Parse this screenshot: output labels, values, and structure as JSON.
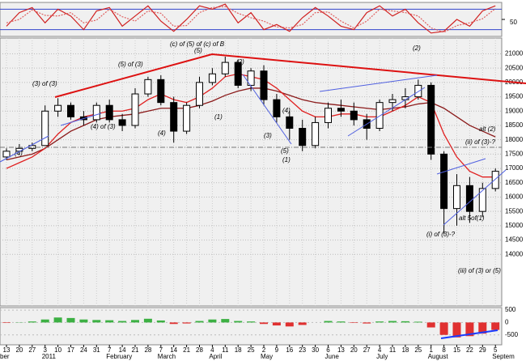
{
  "chart_data": [
    {
      "type": "candlestick",
      "categories": [
        "13",
        "20",
        "27",
        "3",
        "10",
        "17",
        "24",
        "31",
        "7",
        "14",
        "21",
        "28",
        "7",
        "14",
        "21",
        "28",
        "4",
        "11",
        "18",
        "25",
        "2",
        "9",
        "16",
        "23",
        "30",
        "6",
        "13",
        "20",
        "27",
        "4",
        "11",
        "18",
        "25",
        "1",
        "8",
        "15",
        "22",
        "29",
        "5"
      ],
      "months": [
        {
          "label": "ber",
          "at": 0
        },
        {
          "label": "2011",
          "at": 3
        },
        {
          "label": "February",
          "at": 8
        },
        {
          "label": "March",
          "at": 12
        },
        {
          "label": "April",
          "at": 16
        },
        {
          "label": "May",
          "at": 20
        },
        {
          "label": "June",
          "at": 25
        },
        {
          "label": "July",
          "at": 29
        },
        {
          "label": "August",
          "at": 33
        },
        {
          "label": "Septem",
          "at": 38
        }
      ],
      "open": [
        17400,
        17600,
        17700,
        17800,
        19000,
        19200,
        18800,
        18700,
        19200,
        18700,
        18500,
        19600,
        20100,
        19300,
        18300,
        19200,
        20000,
        20300,
        20700,
        19900,
        20400,
        19400,
        18800,
        18400,
        17800,
        18600,
        19100,
        19000,
        18700,
        18400,
        19300,
        19400,
        19500,
        19900,
        17500,
        15600,
        16400,
        15500,
        16300
      ],
      "high": [
        17700,
        17850,
        17900,
        19200,
        19450,
        19300,
        19000,
        19300,
        19400,
        18900,
        19800,
        20200,
        20250,
        19500,
        19300,
        20200,
        20500,
        20900,
        20800,
        20500,
        20600,
        19600,
        19000,
        18700,
        18800,
        19300,
        19400,
        19300,
        18900,
        19400,
        19600,
        19800,
        20100,
        20000,
        17600,
        16800,
        16700,
        16500,
        17000
      ],
      "low": [
        17300,
        17500,
        17600,
        17800,
        18800,
        18700,
        18500,
        18600,
        18600,
        18300,
        18400,
        19500,
        19200,
        17900,
        18200,
        19100,
        19900,
        20200,
        19800,
        19700,
        19200,
        18600,
        18000,
        17600,
        17700,
        18400,
        18800,
        18500,
        18000,
        18300,
        19000,
        19100,
        19400,
        17300,
        14700,
        15000,
        15100,
        15300,
        16200
      ],
      "close": [
        17600,
        17700,
        17800,
        19000,
        19200,
        18800,
        18700,
        19200,
        18700,
        18500,
        19600,
        20100,
        19300,
        18300,
        19200,
        20000,
        20300,
        20700,
        19900,
        20400,
        19400,
        18800,
        18400,
        17800,
        18600,
        19100,
        19000,
        18700,
        18400,
        19300,
        19400,
        19500,
        19900,
        17500,
        15600,
        16400,
        15500,
        16300,
        16900
      ],
      "overlays": [
        {
          "color": "#8b1a1a",
          "values": [
            17300,
            17400,
            17500,
            17700,
            18000,
            18300,
            18500,
            18700,
            18800,
            18850,
            18900,
            19000,
            19100,
            19100,
            19100,
            19200,
            19350,
            19550,
            19700,
            19800,
            19800,
            19700,
            19550,
            19400,
            19300,
            19250,
            19200,
            19150,
            19100,
            19050,
            19100,
            19150,
            19250,
            19300,
            19100,
            18800,
            18500,
            18300,
            18100
          ]
        },
        {
          "color": "#e02020",
          "values": [
            17000,
            17200,
            17400,
            17700,
            18200,
            18600,
            18800,
            18900,
            19000,
            19000,
            19100,
            19400,
            19600,
            19400,
            19300,
            19500,
            19800,
            20200,
            20300,
            20200,
            20100,
            19800,
            19400,
            19000,
            18800,
            18800,
            18900,
            18900,
            18800,
            18800,
            19000,
            19200,
            19500,
            19300,
            18200,
            17400,
            16900,
            16700,
            16700
          ]
        }
      ],
      "ylim": [
        12200,
        21550
      ],
      "yticks": [
        14000,
        14500,
        15000,
        15500,
        16000,
        16500,
        17000,
        17500,
        18000,
        18500,
        19000,
        19500,
        20000,
        20500,
        21000
      ],
      "grid": true,
      "annotations": [
        {
          "text": "(c) of (5) of (c) of B",
          "color": "#cc0000"
        },
        {
          "text": "(5)",
          "color": "#cc0000"
        },
        {
          "text": "(5) of (3)",
          "color": "#1a1aff"
        },
        {
          "text": "(3) of (3)",
          "color": "#1a1aff"
        },
        {
          "text": "(4) of (3)",
          "color": "#1a1aff"
        },
        {
          "text": "(4)",
          "color": "#cc0000"
        },
        {
          "text": "(1)",
          "color": "#1a1aff"
        },
        {
          "text": "(2)",
          "color": "#1a1aff"
        },
        {
          "text": "(3)",
          "color": "#1a1aff"
        },
        {
          "text": "(4)",
          "color": "#1a1aff"
        },
        {
          "text": "(5)",
          "color": "#1a1aff"
        },
        {
          "text": "(1)",
          "color": "#00a000"
        },
        {
          "text": "(2)",
          "color": "#008080"
        },
        {
          "text": "alt (2)",
          "color": "#cc0000"
        },
        {
          "text": "(ii) of (3)-?",
          "color": "#1a1aff"
        },
        {
          "text": "alt 5of(1)",
          "color": "#cc0000"
        },
        {
          "text": "(i) of (3)-?",
          "color": "#1a1aff"
        },
        {
          "text": "(iii) of (3) or (5)",
          "color": "#008080"
        },
        {
          "text": "(4)",
          "color": "#1a1aff"
        }
      ]
    },
    {
      "type": "line",
      "series": [
        {
          "color": "#d02020",
          "values": [
            30,
            70,
            85,
            40,
            80,
            60,
            20,
            75,
            85,
            30,
            60,
            90,
            45,
            15,
            50,
            90,
            80,
            95,
            40,
            70,
            20,
            35,
            15,
            55,
            85,
            60,
            30,
            20,
            70,
            90,
            60,
            80,
            40,
            10,
            15,
            50,
            30,
            75,
            90
          ]
        },
        {
          "color": "#e06060",
          "values": [
            40,
            50,
            78,
            62,
            60,
            70,
            40,
            48,
            80,
            58,
            45,
            75,
            68,
            30,
            32,
            70,
            85,
            88,
            68,
            55,
            45,
            28,
            25,
            35,
            70,
            72,
            45,
            25,
            45,
            80,
            75,
            70,
            60,
            25,
            12,
            32,
            40,
            52,
            82
          ]
        }
      ],
      "ylim": [
        0,
        100
      ],
      "yticks": [
        50
      ],
      "levels": [
        20,
        80
      ]
    },
    {
      "type": "bar",
      "values": [
        -20,
        10,
        40,
        120,
        200,
        180,
        120,
        100,
        90,
        60,
        100,
        150,
        80,
        -60,
        -40,
        60,
        120,
        140,
        60,
        40,
        -60,
        -120,
        -160,
        -100,
        0,
        60,
        40,
        -20,
        -40,
        40,
        60,
        50,
        30,
        -200,
        -500,
        -600,
        -550,
        -450,
        -300
      ],
      "colors": {
        "up": "#3cb043",
        "down": "#e03030"
      },
      "ylim": [
        -900,
        600
      ],
      "yticks": [
        500,
        0,
        -500
      ]
    }
  ]
}
